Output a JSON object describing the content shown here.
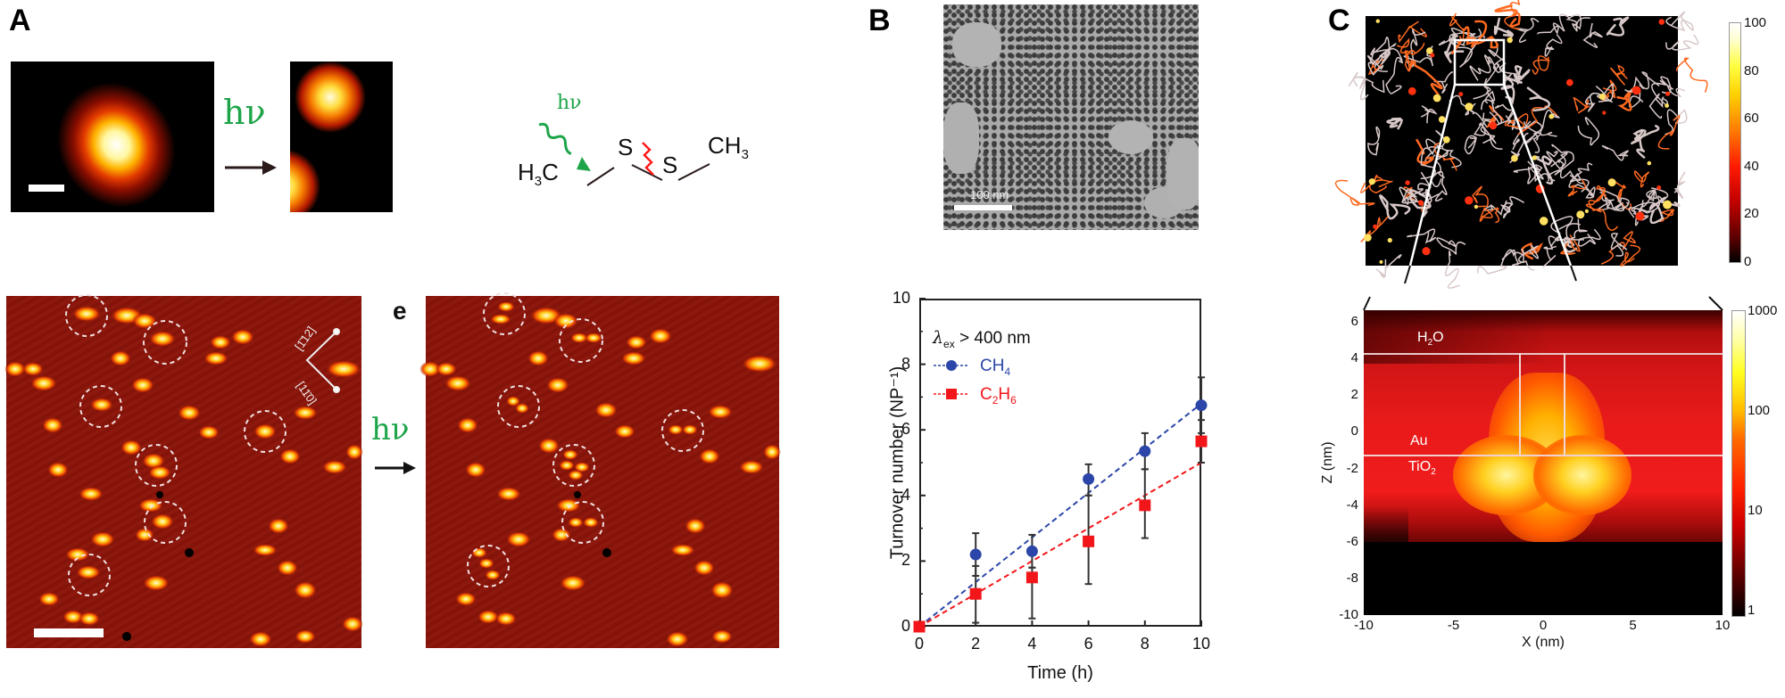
{
  "panels": {
    "A": {
      "label": "A",
      "excitation_label": "hν",
      "molecule": {
        "left_group": "H3C",
        "atom1": "S",
        "atom2": "S",
        "right_group": "CH3",
        "bond_cleavage": "S–S bond broken by light"
      },
      "sublabel_e": "e",
      "crystal_directions": [
        "[1̄12]",
        "[11̄0]"
      ],
      "colors": {
        "hv_green": "#1ea54a",
        "cleavage_red": "#ff1a1a",
        "stm_bg": "#8a1108"
      }
    },
    "B": {
      "label": "B",
      "micrograph_scale_bar": "100 nm"
    },
    "C": {
      "label": "C",
      "top_colorbar": {
        "ticks": [
          "100",
          "80",
          "60",
          "40",
          "20",
          "0"
        ]
      },
      "bottom_colorbar": {
        "ticks": [
          "1000",
          "100",
          "10",
          "1"
        ]
      },
      "bottom_plot": {
        "xlabel": "X (nm)",
        "ylabel": "Z (nm)",
        "xticks": [
          "-10",
          "-5",
          "0",
          "5",
          "10"
        ],
        "yticks": [
          "6",
          "4",
          "2",
          "0",
          "-2",
          "-4",
          "-6",
          "-8",
          "-10"
        ],
        "materials": {
          "water": "H2O",
          "gold": "Au",
          "titania": "TiO2"
        }
      }
    }
  },
  "chart_data": {
    "type": "scatter",
    "title": "",
    "annotation": "λex > 400 nm",
    "xlabel": "Time (h)",
    "ylabel": "Turnover number (NP⁻¹)",
    "xlim": [
      0,
      10
    ],
    "ylim": [
      0,
      10
    ],
    "xticks": [
      0,
      2,
      4,
      6,
      8,
      10
    ],
    "yticks": [
      0,
      2,
      4,
      6,
      8,
      10
    ],
    "grid": false,
    "legend_position": "upper left",
    "series": [
      {
        "name": "CH4",
        "marker": "circle",
        "color": "#2b46a8",
        "x": [
          0,
          2,
          4,
          6,
          8,
          10
        ],
        "y": [
          0,
          2.2,
          2.3,
          4.5,
          5.35,
          6.75
        ],
        "yerr_upper": [
          0,
          2.85,
          2.8,
          4.95,
          5.9,
          7.6
        ],
        "yerr_lower": [
          0,
          1.55,
          1.8,
          4.0,
          4.8,
          5.9
        ],
        "fit": {
          "type": "linear",
          "x": [
            0,
            10
          ],
          "y": [
            0,
            6.8
          ]
        }
      },
      {
        "name": "C2H6",
        "marker": "square",
        "color": "#f2161a",
        "x": [
          0,
          2,
          4,
          6,
          8,
          10
        ],
        "y": [
          0,
          1.0,
          1.5,
          2.6,
          3.7,
          5.65
        ],
        "yerr_upper": [
          0,
          1.85,
          1.8,
          4.0,
          4.8,
          6.3
        ],
        "yerr_lower": [
          0,
          0.12,
          0.25,
          1.3,
          2.7,
          5.0
        ],
        "fit": {
          "type": "linear",
          "x": [
            0,
            10
          ],
          "y": [
            0,
            5.0
          ]
        }
      }
    ]
  }
}
